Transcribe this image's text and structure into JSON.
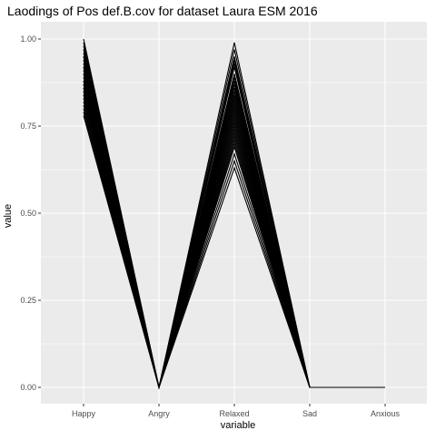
{
  "chart_data": {
    "type": "line",
    "title": "Laodings of Pos def.B.cov for dataset Laura ESM 2016",
    "xlabel": "variable",
    "ylabel": "value",
    "categories": [
      "Happy",
      "Angry",
      "Relaxed",
      "Sad",
      "Anxious"
    ],
    "ylim": [
      0,
      1
    ],
    "yticks": [
      0,
      0.25,
      0.5,
      0.75,
      1.0
    ],
    "ytick_labels": [
      "0.00",
      "0.25",
      "0.50",
      "0.75",
      "1.00"
    ],
    "grid": true,
    "legend": "none",
    "colors": {
      "panel": "#ebebeb",
      "grid_major": "#ffffff",
      "line": "#000000",
      "tick_text": "#4d4d4d"
    },
    "series": [
      {
        "values": [
          1.0,
          0.0,
          0.99,
          0.0,
          0.0
        ]
      },
      {
        "values": [
          0.99,
          0.0,
          0.97,
          0.0,
          0.0
        ]
      },
      {
        "values": [
          0.98,
          0.0,
          0.95,
          0.0,
          0.0
        ]
      },
      {
        "values": [
          0.97,
          0.0,
          0.94,
          0.0,
          0.0
        ]
      },
      {
        "values": [
          0.96,
          0.0,
          0.93,
          0.0,
          0.0
        ]
      },
      {
        "values": [
          0.95,
          0.0,
          0.92,
          0.0,
          0.0
        ]
      },
      {
        "values": [
          0.95,
          0.0,
          0.9,
          0.0,
          0.0
        ]
      },
      {
        "values": [
          0.94,
          0.0,
          0.89,
          0.0,
          0.0
        ]
      },
      {
        "values": [
          0.93,
          0.0,
          0.88,
          0.0,
          0.0
        ]
      },
      {
        "values": [
          0.92,
          0.0,
          0.87,
          0.0,
          0.0
        ]
      },
      {
        "values": [
          0.92,
          0.0,
          0.86,
          0.0,
          0.0
        ]
      },
      {
        "values": [
          0.91,
          0.0,
          0.85,
          0.0,
          0.0
        ]
      },
      {
        "values": [
          0.9,
          0.0,
          0.84,
          0.0,
          0.0
        ]
      },
      {
        "values": [
          0.9,
          0.0,
          0.83,
          0.0,
          0.0
        ]
      },
      {
        "values": [
          0.89,
          0.0,
          0.82,
          0.0,
          0.0
        ]
      },
      {
        "values": [
          0.88,
          0.0,
          0.81,
          0.0,
          0.0
        ]
      },
      {
        "values": [
          0.88,
          0.0,
          0.8,
          0.0,
          0.0
        ]
      },
      {
        "values": [
          0.87,
          0.0,
          0.79,
          0.0,
          0.0
        ]
      },
      {
        "values": [
          0.87,
          0.0,
          0.78,
          0.0,
          0.0
        ]
      },
      {
        "values": [
          0.86,
          0.0,
          0.77,
          0.0,
          0.0
        ]
      },
      {
        "values": [
          0.86,
          0.0,
          0.76,
          0.0,
          0.0
        ]
      },
      {
        "values": [
          0.85,
          0.0,
          0.75,
          0.0,
          0.0
        ]
      },
      {
        "values": [
          0.85,
          0.0,
          0.74,
          0.0,
          0.0
        ]
      },
      {
        "values": [
          0.84,
          0.0,
          0.73,
          0.0,
          0.0
        ]
      },
      {
        "values": [
          0.84,
          0.0,
          0.72,
          0.0,
          0.0
        ]
      },
      {
        "values": [
          0.83,
          0.0,
          0.71,
          0.0,
          0.0
        ]
      },
      {
        "values": [
          0.82,
          0.0,
          0.7,
          0.0,
          0.0
        ]
      },
      {
        "values": [
          0.81,
          0.0,
          0.69,
          0.0,
          0.0
        ]
      },
      {
        "values": [
          0.8,
          0.0,
          0.67,
          0.0,
          0.0
        ]
      },
      {
        "values": [
          0.79,
          0.0,
          0.65,
          0.0,
          0.0
        ]
      },
      {
        "values": [
          0.78,
          0.0,
          0.63,
          0.0,
          0.0
        ]
      }
    ]
  }
}
